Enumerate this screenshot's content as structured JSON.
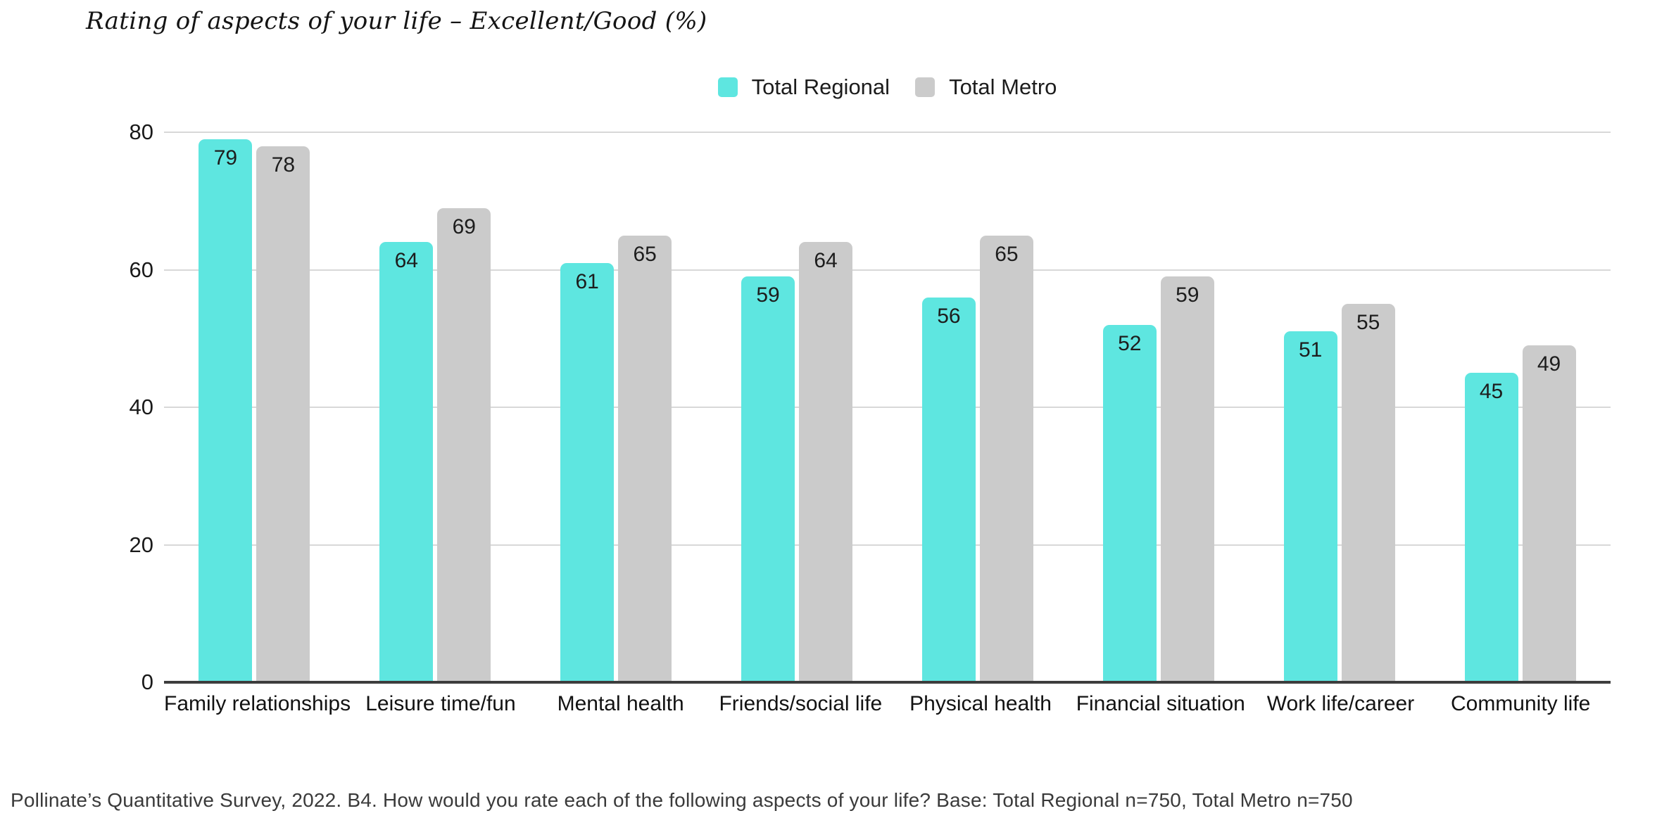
{
  "title": "Rating of aspects of your life – Excellent/Good (%)",
  "footer": "Pollinate’s Quantitative Survey, 2022. B4. How would you rate each of the following aspects of your life? Base: Total Regional n=750, Total Metro n=750",
  "colors": {
    "regional": "#5ee6e0",
    "metro": "#cbcbcb",
    "gridline": "#d8d8d8",
    "axis": "#3d3d3d",
    "label_text": "#1d1d1d",
    "footer_text": "#3a3a3a"
  },
  "chart_data": {
    "type": "bar",
    "title": "Rating of aspects of your life – Excellent/Good (%)",
    "categories": [
      "Family relationships",
      "Leisure time/fun",
      "Mental health",
      "Friends/social life",
      "Physical health",
      "Financial situation",
      "Work life/career",
      "Community life"
    ],
    "series": [
      {
        "name": "Total Regional",
        "color": "#5ee6e0",
        "values": [
          79,
          64,
          61,
          59,
          56,
          52,
          51,
          45
        ]
      },
      {
        "name": "Total Metro",
        "color": "#cbcbcb",
        "values": [
          78,
          69,
          65,
          64,
          65,
          59,
          55,
          49
        ]
      }
    ],
    "xlabel": "",
    "ylabel": "",
    "ylim": [
      0,
      80
    ],
    "yticks": [
      0,
      20,
      40,
      60,
      80
    ],
    "grid": true,
    "legend_position": "top-center",
    "value_labels": "inside-top"
  }
}
